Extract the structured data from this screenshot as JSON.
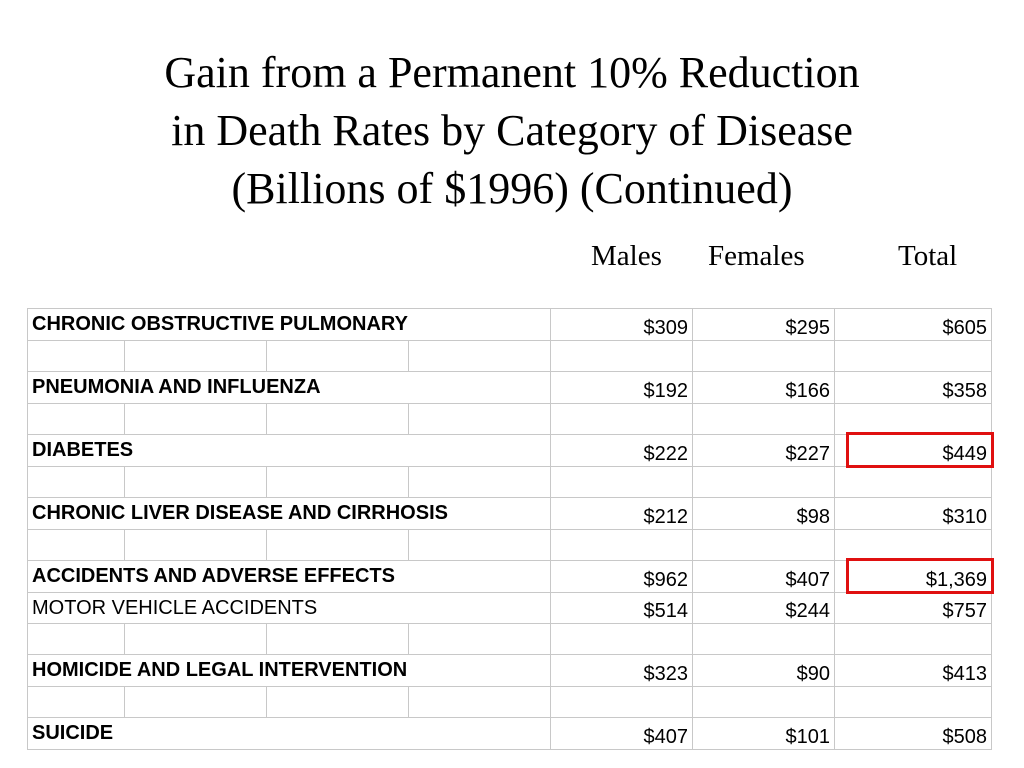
{
  "title": {
    "line1": "Gain from a Permanent 10% Reduction",
    "line2": "in Death Rates by Category of Disease",
    "line3": "(Billions of $1996) (Continued)"
  },
  "columns": {
    "males": "Males",
    "females": "Females",
    "total": "Total"
  },
  "rows": [
    {
      "label": "CHRONIC OBSTRUCTIVE PULMONARY",
      "males": "$309",
      "females": "$295",
      "total": "$605"
    },
    {
      "label": "PNEUMONIA AND INFLUENZA",
      "males": "$192",
      "females": "$166",
      "total": "$358"
    },
    {
      "label": "DIABETES",
      "males": "$222",
      "females": "$227",
      "total": "$449"
    },
    {
      "label": "CHRONIC LIVER DISEASE AND CIRRHOSIS",
      "males": "$212",
      "females": "$98",
      "total": "$310"
    },
    {
      "label": "ACCIDENTS AND ADVERSE EFFECTS",
      "males": "$962",
      "females": "$407",
      "total": "$1,369"
    },
    {
      "label": "MOTOR VEHICLE ACCIDENTS",
      "males": "$514",
      "females": "$244",
      "total": "$757"
    },
    {
      "label": "HOMICIDE AND LEGAL INTERVENTION",
      "males": "$323",
      "females": "$90",
      "total": "$413"
    },
    {
      "label": "SUICIDE",
      "males": "$407",
      "females": "$101",
      "total": "$508"
    }
  ],
  "highlight_color": "#e01010"
}
